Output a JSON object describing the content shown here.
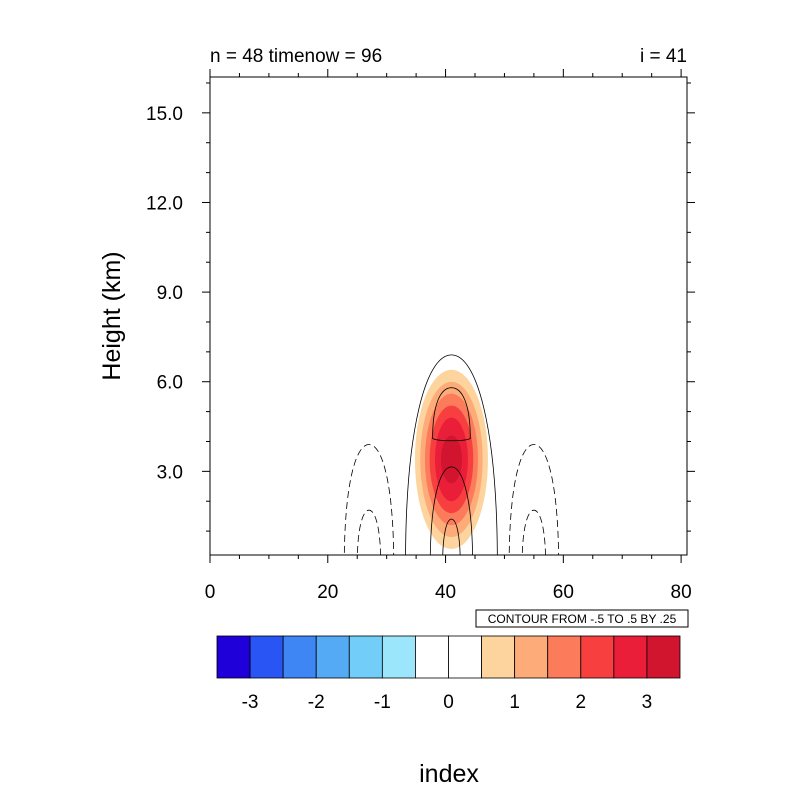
{
  "chart_data": {
    "type": "contour",
    "title_left": "n = 48 timenow = 96",
    "title_right": "i = 41",
    "ylabel": "Height (km)",
    "xlabel": "index",
    "xlim": [
      0,
      81
    ],
    "ylim": [
      0.2,
      16.2
    ],
    "x_ticks": [
      0,
      20,
      40,
      60,
      80
    ],
    "x_tick_labels": [
      "0",
      "20",
      "40",
      "60",
      "80"
    ],
    "y_ticks": [
      3,
      6,
      9,
      12,
      15
    ],
    "y_tick_labels": [
      "3.0",
      "6.0",
      "9.0",
      "12.0",
      "15.0"
    ],
    "contour_info": "CONTOUR FROM -.5 TO .5 BY .25",
    "colorbar": {
      "labels": [
        "-3",
        "-2",
        "-1",
        "0",
        "1",
        "2",
        "3"
      ],
      "label_values": [
        -3,
        -2,
        -1,
        0,
        1,
        2,
        3
      ],
      "levels": [
        -3.5,
        -3,
        -2.5,
        -2,
        -1.5,
        -1,
        -0.5,
        0,
        0.5,
        1,
        1.5,
        2,
        2.5,
        3,
        3.5
      ],
      "colors": [
        "#1f00d8",
        "#2a55f5",
        "#3f86f5",
        "#55aaf6",
        "#72cdf8",
        "#9be6fb",
        "#ffffff",
        "#ffffff",
        "#fdd49e",
        "#fdab78",
        "#fb7b5b",
        "#f63f3e",
        "#eb1e3a",
        "#d2152e"
      ]
    },
    "filled_field": {
      "center_x": 41,
      "center_y": 3.4,
      "peak": 3.2,
      "levels": [
        0.5,
        1,
        1.5,
        2,
        2.5,
        3
      ],
      "half_widths": [
        6.2,
        5.3,
        4.5,
        3.7,
        2.8,
        1.8
      ],
      "half_heights": [
        3.0,
        2.6,
        2.2,
        1.8,
        1.4,
        0.8
      ]
    },
    "contours": {
      "positive": [
        {
          "center_x": 41,
          "half_width": 7.8,
          "top": 6.9
        },
        {
          "center_x": 41,
          "half_width": 3.6,
          "top": 3.15
        },
        {
          "center_x": 41,
          "half_width": 1.5,
          "top": 1.4
        }
      ],
      "positive_loop": {
        "center_x": 41,
        "half_width": 3.2,
        "y_bottom": 4.1,
        "y_top": 5.8
      },
      "negative": [
        {
          "center_x": 27,
          "half_width": 4.2,
          "top": 3.9
        },
        {
          "center_x": 27,
          "half_width": 2.0,
          "top": 1.7
        },
        {
          "center_x": 55,
          "half_width": 4.2,
          "top": 3.9
        },
        {
          "center_x": 55,
          "half_width": 2.0,
          "top": 1.7
        }
      ]
    }
  }
}
